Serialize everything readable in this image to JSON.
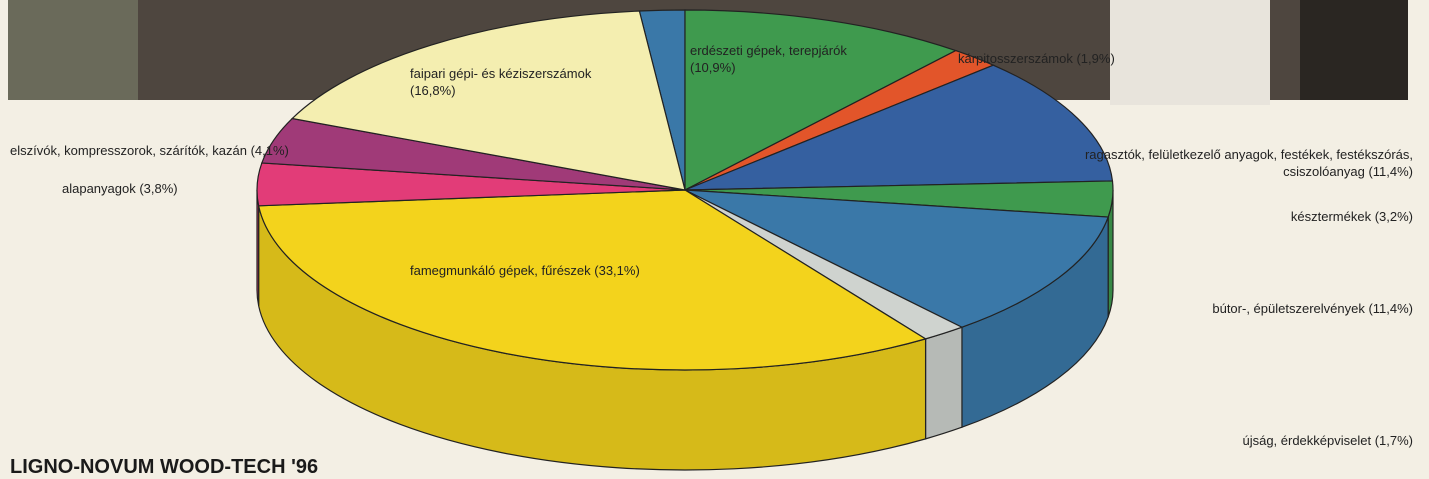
{
  "chart_data": {
    "type": "pie3d",
    "title": "LIGNO-NOVUM WOOD-TECH '96",
    "categories": [
      null,
      "erdészeti gépek, terepjárók (10,9%)",
      "kárpitosszerszámok (1,9%)",
      "ragasztók, felületkezelő anyagok, festékek, festékszórás, csiszolóanyag (11,4%)",
      "késztermékek (3,2%)",
      "bútor-, épületszerelvények (11,4%)",
      "újság, érdekképviselet (1,7%)",
      "famegmunkáló gépek, fűrészek (33,1%)",
      "alapanyagok (3,8%)",
      "elszívók, kompresszorok, szárítók, kazán (4,1%)",
      "faipari gépi- és kéziszerszámok (16,8%)"
    ],
    "values": [
      1.7,
      10.9,
      1.9,
      11.4,
      3.2,
      11.4,
      1.7,
      33.1,
      3.8,
      4.1,
      16.8
    ],
    "colors": [
      "#3a78a8",
      "#3f9a4e",
      "#e2552a",
      "#3560a0",
      "#3f9a4e",
      "#3a78a8",
      "#cfd3cf",
      "#f3d31c",
      "#e23c78",
      "#a03a78",
      "#f4eeb0"
    ]
  }
}
